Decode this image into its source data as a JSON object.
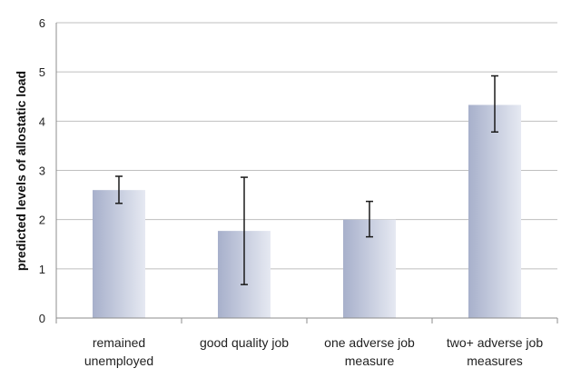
{
  "chart_data": {
    "type": "bar",
    "title": "",
    "xlabel": "",
    "ylabel": "predicted levels of allostatic load",
    "ylim": [
      0,
      6
    ],
    "yticks": [
      "0",
      "1",
      "2",
      "3",
      "4",
      "5",
      "6"
    ],
    "grid": true,
    "categories": [
      [
        "remained",
        "unemployed"
      ],
      [
        "good quality job"
      ],
      [
        "one adverse job",
        "measure"
      ],
      [
        "two+ adverse job",
        "measures"
      ]
    ],
    "values": [
      2.6,
      1.77,
      2.0,
      4.33
    ],
    "error_low": [
      2.33,
      0.68,
      1.65,
      3.78
    ],
    "error_high": [
      2.88,
      2.86,
      2.37,
      4.92
    ],
    "colors": {
      "bar_light": "#e6e9f2",
      "bar_dark": "#a7b0cb",
      "grid": "#bfbfbf",
      "axis": "#8c8c8c",
      "error": "#1a1a1a"
    }
  }
}
